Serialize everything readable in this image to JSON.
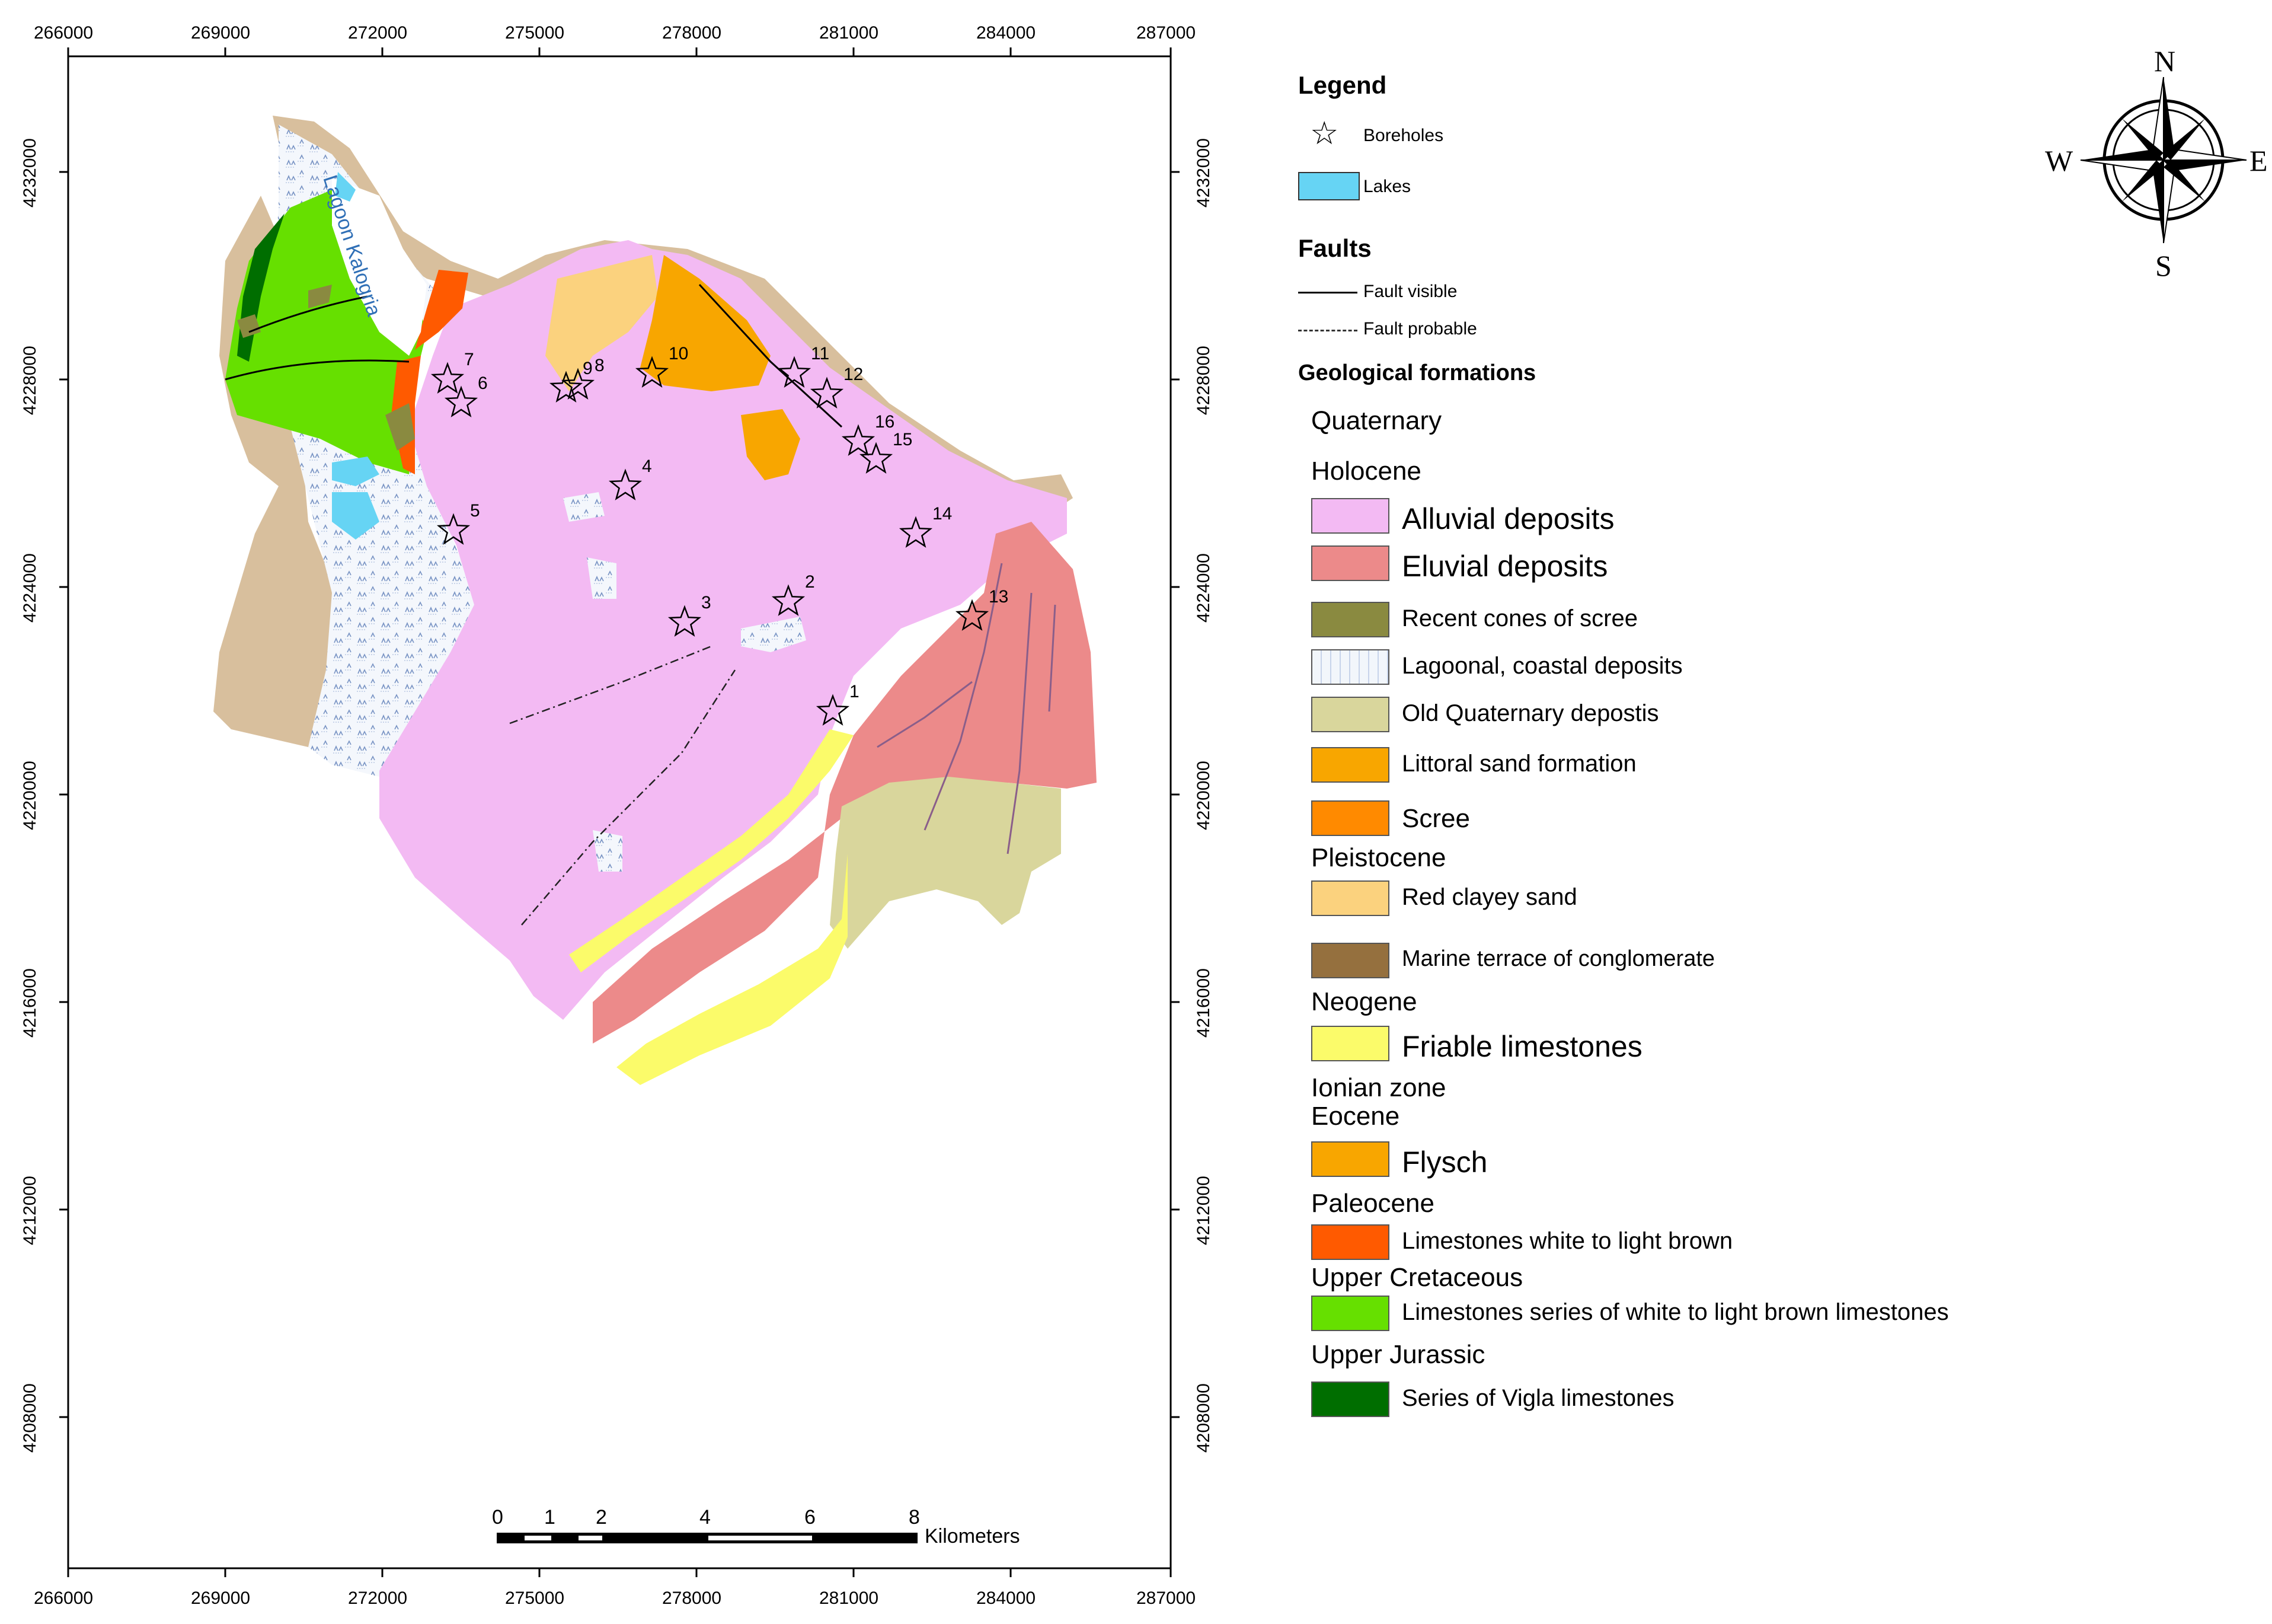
{
  "map": {
    "x_ticks": [
      "266000",
      "269000",
      "272000",
      "275000",
      "278000",
      "281000",
      "284000",
      "287000"
    ],
    "y_ticks": [
      "4232000",
      "4228000",
      "4224000",
      "4220000",
      "4216000",
      "4212000",
      "4208000"
    ],
    "lagoon_label": "Lagoon Kalogria",
    "boreholes": [
      "1",
      "2",
      "3",
      "4",
      "5",
      "6",
      "7",
      "8",
      "9",
      "10",
      "11",
      "12",
      "13",
      "14",
      "15",
      "16"
    ],
    "scale": {
      "labels": [
        "0",
        "1",
        "2",
        "4",
        "6",
        "8"
      ],
      "unit": "Kilometers"
    },
    "north_arrow": {
      "n": "N",
      "s": "S",
      "e": "E",
      "w": "W"
    }
  },
  "colors": {
    "alluvial": "#f3baf3",
    "eluvial": "#ec8a8a",
    "cones": "#8a8a40",
    "lagoonal": "#f2f6fb",
    "oldq": "#d9d69c",
    "littoral": "#f8a600",
    "scree": "#ff8a00",
    "redclay": "#fbd27e",
    "marine": "#95703e",
    "friable": "#fbfb6a",
    "flysch": "#f8a600",
    "limewhite": "#ff5a00",
    "limeseries": "#66e000",
    "vigla": "#006e00",
    "lakes": "#66d4f4",
    "coast": "#d8bf9d"
  },
  "legend": {
    "title": "Legend",
    "boreholes": "Boreholes",
    "lakes": "Lakes",
    "faults_title": "Faults",
    "fault_visible": "Fault visible",
    "fault_probable": "Fault probable",
    "formations_title": "Geological formations",
    "quaternary": "Quaternary",
    "holocene": "Holocene",
    "alluvial": "Alluvial deposits",
    "eluvial": "Eluvial deposits",
    "cones": "Recent cones of scree",
    "lagoonal": "Lagoonal, coastal deposits",
    "oldq": "Old Quaternary depostis",
    "littoral": "Littoral sand formation",
    "scree": "Scree",
    "pleistocene": "Pleistocene",
    "redclay": "Red clayey sand",
    "marine": "Marine terrace of conglomerate",
    "neogene": "Neogene",
    "friable": "Friable limestones",
    "ionian": "Ionian zone",
    "eocene": "Eocene",
    "flysch": "Flysch",
    "paleocene": "Paleocene",
    "limewhite": "Limestones white to light brown",
    "upper_cretaceous": "Upper Cretaceous",
    "limeseries": "Limestones series of white to light brown limestones",
    "upper_jurassic": "Upper Jurassic",
    "vigla": "Series of Vigla limestones"
  }
}
